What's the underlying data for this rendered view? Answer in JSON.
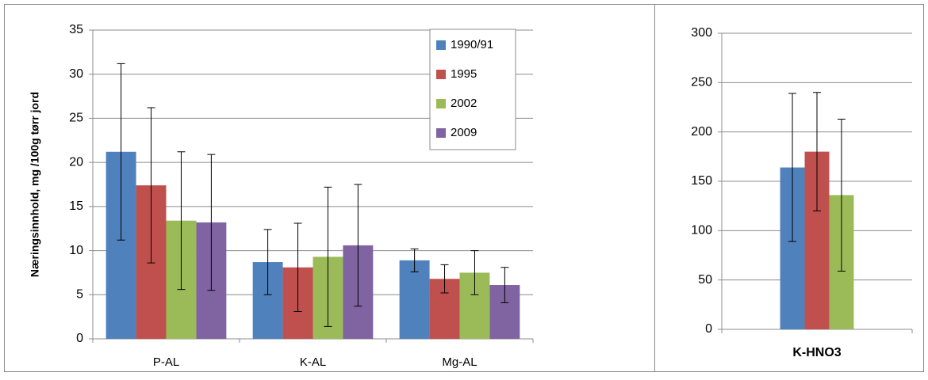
{
  "chart_data": [
    {
      "type": "bar",
      "y_label": "Næringsinnhold, mg /100g tørr jord",
      "categories": [
        "P-AL",
        "K-AL",
        "Mg-AL"
      ],
      "series": [
        {
          "name": "1990/91",
          "color": "#4f81bd",
          "values": [
            21.2,
            8.7,
            8.9
          ],
          "errors": [
            10,
            3.7,
            1.3
          ]
        },
        {
          "name": "1995",
          "color": "#c0504d",
          "values": [
            17.4,
            8.1,
            6.8
          ],
          "errors": [
            8.8,
            5.0,
            1.6
          ]
        },
        {
          "name": "2002",
          "color": "#9bbb59",
          "values": [
            13.4,
            9.3,
            7.5
          ],
          "errors": [
            7.8,
            7.9,
            2.5
          ]
        },
        {
          "name": "2009",
          "color": "#8064a2",
          "values": [
            13.2,
            10.6,
            6.1
          ],
          "errors": [
            7.7,
            6.9,
            2.0
          ]
        }
      ],
      "ylim": [
        0,
        35
      ],
      "yticks": [
        0,
        5,
        10,
        15,
        20,
        25,
        30,
        35
      ],
      "grid": true,
      "legend": "top-right"
    },
    {
      "type": "bar",
      "categories": [
        "K-HNO3"
      ],
      "series": [
        {
          "color": "#4f81bd",
          "values": [
            164
          ],
          "errors": [
            75
          ]
        },
        {
          "color": "#c0504d",
          "values": [
            180
          ],
          "errors": [
            60
          ]
        },
        {
          "color": "#9bbb59",
          "values": [
            136
          ],
          "errors": [
            77
          ]
        }
      ],
      "ylim": [
        0,
        300
      ],
      "yticks": [
        0,
        50,
        100,
        150,
        200,
        250,
        300
      ],
      "grid": true
    }
  ]
}
